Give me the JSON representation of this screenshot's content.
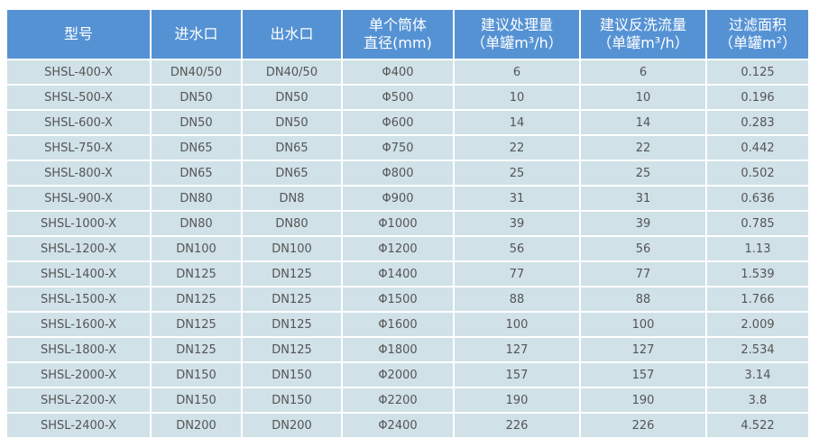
{
  "colors": {
    "header_bg": "#5592d4",
    "row_bg": "#d0e1e8",
    "text": "#555555"
  },
  "headers": [
    {
      "line1": "型号",
      "line2": ""
    },
    {
      "line1": "进水口",
      "line2": ""
    },
    {
      "line1": "出水口",
      "line2": ""
    },
    {
      "line1": "单个筒体",
      "line2": "直径(mm)"
    },
    {
      "line1": "建议处理量",
      "line2": "（单罐m³/h）"
    },
    {
      "line1": "建议反洗流量",
      "line2": "（单罐m³/h）"
    },
    {
      "line1": "过滤面积",
      "line2": "（单罐m²）"
    }
  ],
  "rows": [
    [
      "SHSL-400-X",
      "DN40/50",
      "DN40/50",
      "Φ400",
      "6",
      "6",
      "0.125"
    ],
    [
      "SHSL-500-X",
      "DN50",
      "DN50",
      "Φ500",
      "10",
      "10",
      "0.196"
    ],
    [
      "SHSL-600-X",
      "DN50",
      "DN50",
      "Φ600",
      "14",
      "14",
      "0.283"
    ],
    [
      "SHSL-750-X",
      "DN65",
      "DN65",
      "Φ750",
      "22",
      "22",
      "0.442"
    ],
    [
      "SHSL-800-X",
      "DN65",
      "DN65",
      "Φ800",
      "25",
      "25",
      "0.502"
    ],
    [
      "SHSL-900-X",
      "DN80",
      "DN8",
      "Φ900",
      "31",
      "31",
      "0.636"
    ],
    [
      "SHSL-1000-X",
      "DN80",
      "DN80",
      "Φ1000",
      "39",
      "39",
      "0.785"
    ],
    [
      "SHSL-1200-X",
      "DN100",
      "DN100",
      "Φ1200",
      "56",
      "56",
      "1.13"
    ],
    [
      "SHSL-1400-X",
      "DN125",
      "DN125",
      "Φ1400",
      "77",
      "77",
      "1.539"
    ],
    [
      "SHSL-1500-X",
      "DN125",
      "DN125",
      "Φ1500",
      "88",
      "88",
      "1.766"
    ],
    [
      "SHSL-1600-X",
      "DN125",
      "DN125",
      "Φ1600",
      "100",
      "100",
      "2.009"
    ],
    [
      "SHSL-1800-X",
      "DN125",
      "DN125",
      "Φ1800",
      "127",
      "127",
      "2.534"
    ],
    [
      "SHSL-2000-X",
      "DN150",
      "DN150",
      "Φ2000",
      "157",
      "157",
      "3.14"
    ],
    [
      "SHSL-2200-X",
      "DN150",
      "DN150",
      "Φ2200",
      "190",
      "190",
      "3.8"
    ],
    [
      "SHSL-2400-X",
      "DN200",
      "DN200",
      "Φ2400",
      "226",
      "226",
      "4.522"
    ]
  ]
}
